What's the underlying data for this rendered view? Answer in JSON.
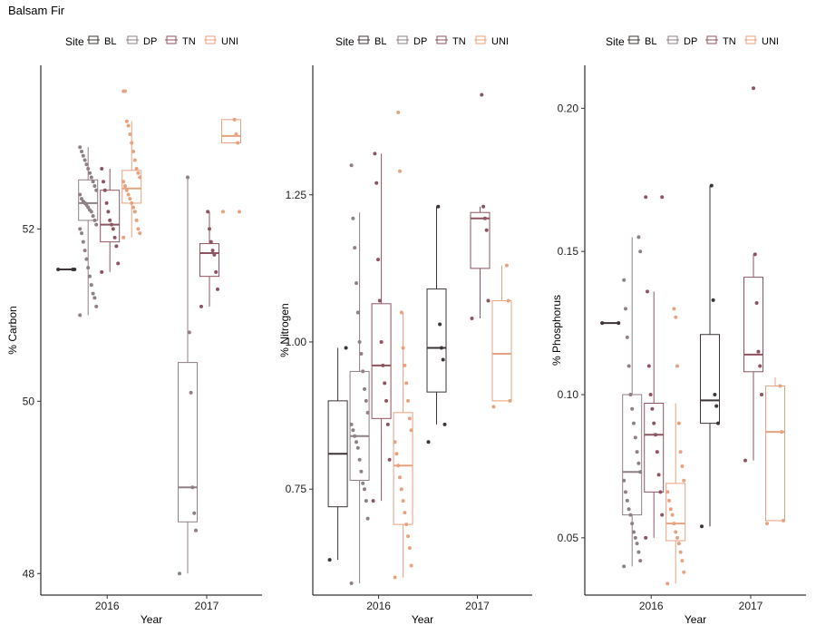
{
  "title": "Balsam Fir",
  "legend": {
    "title": "Site",
    "entries": [
      "BL",
      "DP",
      "TN",
      "UNI"
    ]
  },
  "colors": {
    "BL": "#3d3436",
    "DP": "#8f7f86",
    "TN": "#8e5560",
    "UNI": "#e7a27f",
    "axis": "#000000"
  },
  "chart_data": [
    {
      "type": "box",
      "xlabel": "Year",
      "ylabel": "% Carbon",
      "categories": [
        "2016",
        "2017"
      ],
      "yticks": [
        48,
        50,
        52
      ],
      "ylim": [
        47.75,
        53.9
      ],
      "series": [
        {
          "name": "BL",
          "boxes": [
            {
              "year": "2016",
              "min": 51.53,
              "q1": 51.53,
              "median": 51.53,
              "q3": 51.53,
              "max": 51.53,
              "points": [
                51.53,
                51.53,
                51.53
              ]
            },
            null
          ]
        },
        {
          "name": "DP",
          "boxes": [
            {
              "year": "2016",
              "min": 51.0,
              "q1": 52.1,
              "median": 52.3,
              "q3": 52.57,
              "max": 52.95,
              "points": [
                51.0,
                51.1,
                51.2,
                51.25,
                51.35,
                51.45,
                51.55,
                51.65,
                51.75,
                51.85,
                51.95,
                52.0,
                52.05,
                52.1,
                52.15,
                52.2,
                52.22,
                52.25,
                52.28,
                52.3,
                52.32,
                52.35,
                52.4,
                52.45,
                52.5,
                52.55,
                52.6,
                52.65,
                52.7,
                52.75,
                52.8,
                52.85,
                52.9,
                52.95
              ]
            },
            {
              "year": "2017",
              "min": 48.0,
              "q1": 48.6,
              "median": 49.0,
              "q3": 50.45,
              "max": 52.6,
              "points": [
                48.0,
                48.5,
                48.7,
                49.0,
                50.1,
                50.8,
                52.6
              ]
            }
          ]
        },
        {
          "name": "TN",
          "boxes": [
            {
              "year": "2016",
              "min": 51.5,
              "q1": 51.85,
              "median": 52.05,
              "q3": 52.45,
              "max": 52.7,
              "points": [
                51.5,
                51.6,
                51.8,
                51.9,
                52.0,
                52.05,
                52.1,
                52.2,
                52.3,
                52.45,
                52.55,
                52.7
              ]
            },
            {
              "year": "2017",
              "min": 51.1,
              "q1": 51.45,
              "median": 51.72,
              "q3": 51.83,
              "max": 52.2,
              "points": [
                51.1,
                51.3,
                51.5,
                51.7,
                51.75,
                51.85,
                52.0,
                52.2
              ]
            }
          ]
        },
        {
          "name": "UNI",
          "boxes": [
            {
              "year": "2016",
              "min": 51.9,
              "q1": 52.3,
              "median": 52.47,
              "q3": 52.68,
              "max": 53.25,
              "points": [
                51.9,
                51.95,
                52.0,
                52.1,
                52.2,
                52.25,
                52.3,
                52.35,
                52.4,
                52.45,
                52.5,
                52.55,
                52.6,
                52.65,
                52.7,
                52.8,
                52.9,
                53.0,
                53.1,
                53.2,
                53.25,
                53.6,
                53.6
              ]
            },
            {
              "year": "2017",
              "min": 53.0,
              "q1": 53.0,
              "median": 53.08,
              "q3": 53.27,
              "max": 53.27,
              "points": [
                52.2,
                52.2,
                53.0,
                53.1,
                53.27
              ]
            }
          ]
        }
      ]
    },
    {
      "type": "box",
      "xlabel": "Year",
      "ylabel": "% Nitrogen",
      "categories": [
        "2016",
        "2017"
      ],
      "yticks": [
        0.75,
        1.0,
        1.25
      ],
      "ytick_labels": [
        "0.75",
        "1.00",
        "1.25"
      ],
      "ylim": [
        0.57,
        1.47
      ],
      "series": [
        {
          "name": "BL",
          "boxes": [
            {
              "year": "2016",
              "min": 0.63,
              "q1": 0.72,
              "median": 0.81,
              "q3": 0.9,
              "max": 0.99,
              "points": [
                0.63,
                0.99
              ]
            },
            {
              "year": "2017",
              "min": 0.86,
              "q1": 0.915,
              "median": 0.99,
              "q3": 1.09,
              "max": 1.23,
              "points": [
                0.83,
                0.86,
                0.97,
                0.99,
                1.03,
                1.23
              ]
            }
          ]
        },
        {
          "name": "DP",
          "boxes": [
            {
              "year": "2016",
              "min": 0.59,
              "q1": 0.765,
              "median": 0.84,
              "q3": 0.95,
              "max": 1.22,
              "points": [
                0.59,
                0.7,
                0.73,
                0.75,
                0.76,
                0.78,
                0.8,
                0.82,
                0.83,
                0.84,
                0.85,
                0.86,
                0.88,
                0.9,
                0.92,
                0.95,
                0.98,
                1.0,
                1.05,
                1.1,
                1.16,
                1.21,
                1.3
              ]
            },
            null
          ]
        },
        {
          "name": "TN",
          "boxes": [
            {
              "year": "2016",
              "min": 0.73,
              "q1": 0.87,
              "median": 0.96,
              "q3": 1.065,
              "max": 1.32,
              "points": [
                0.73,
                0.8,
                0.86,
                0.9,
                0.93,
                0.96,
                1.0,
                1.07,
                1.14,
                1.27,
                1.32
              ]
            },
            {
              "year": "2017",
              "min": 1.04,
              "q1": 1.125,
              "median": 1.21,
              "q3": 1.22,
              "max": 1.23,
              "points": [
                1.04,
                1.07,
                1.19,
                1.21,
                1.23,
                1.42
              ]
            }
          ]
        },
        {
          "name": "UNI",
          "boxes": [
            {
              "year": "2016",
              "min": 0.6,
              "q1": 0.69,
              "median": 0.79,
              "q3": 0.88,
              "max": 1.05,
              "points": [
                0.6,
                0.62,
                0.65,
                0.67,
                0.69,
                0.71,
                0.73,
                0.75,
                0.77,
                0.79,
                0.81,
                0.83,
                0.85,
                0.87,
                0.9,
                0.93,
                0.96,
                0.99,
                1.05,
                1.29,
                1.39
              ]
            },
            {
              "year": "2017",
              "min": 0.9,
              "q1": 0.9,
              "median": 0.98,
              "q3": 1.07,
              "max": 1.13,
              "points": [
                0.89,
                0.9,
                1.07,
                1.13
              ]
            }
          ]
        }
      ]
    },
    {
      "type": "box",
      "xlabel": "Year",
      "ylabel": "% Phosphorus",
      "categories": [
        "2016",
        "2017"
      ],
      "yticks": [
        0.05,
        0.1,
        0.15,
        0.2
      ],
      "ytick_labels": [
        "0.05",
        "0.10",
        "0.15",
        "0.20"
      ],
      "ylim": [
        0.03,
        0.215
      ],
      "series": [
        {
          "name": "BL",
          "boxes": [
            {
              "year": "2016",
              "min": 0.125,
              "q1": 0.125,
              "median": 0.125,
              "q3": 0.125,
              "max": 0.125,
              "points": [
                0.125,
                0.125
              ]
            },
            {
              "year": "2017",
              "min": 0.054,
              "q1": 0.09,
              "median": 0.098,
              "q3": 0.121,
              "max": 0.173,
              "points": [
                0.054,
                0.09,
                0.096,
                0.1,
                0.133,
                0.173
              ]
            }
          ]
        },
        {
          "name": "DP",
          "boxes": [
            {
              "year": "2016",
              "min": 0.04,
              "q1": 0.058,
              "median": 0.073,
              "q3": 0.1,
              "max": 0.155,
              "points": [
                0.04,
                0.042,
                0.045,
                0.048,
                0.05,
                0.052,
                0.055,
                0.058,
                0.06,
                0.063,
                0.066,
                0.07,
                0.073,
                0.076,
                0.08,
                0.085,
                0.09,
                0.095,
                0.1,
                0.11,
                0.12,
                0.13,
                0.14,
                0.15,
                0.155
              ]
            },
            null
          ]
        },
        {
          "name": "TN",
          "boxes": [
            {
              "year": "2016",
              "min": 0.05,
              "q1": 0.066,
              "median": 0.086,
              "q3": 0.097,
              "max": 0.136,
              "points": [
                0.05,
                0.058,
                0.066,
                0.072,
                0.08,
                0.086,
                0.09,
                0.095,
                0.1,
                0.11,
                0.136,
                0.169,
                0.169
              ]
            },
            {
              "year": "2017",
              "min": 0.077,
              "q1": 0.108,
              "median": 0.114,
              "q3": 0.141,
              "max": 0.149,
              "points": [
                0.077,
                0.1,
                0.11,
                0.115,
                0.132,
                0.149,
                0.207
              ]
            }
          ]
        },
        {
          "name": "UNI",
          "boxes": [
            {
              "year": "2016",
              "min": 0.034,
              "q1": 0.049,
              "median": 0.055,
              "q3": 0.069,
              "max": 0.097,
              "points": [
                0.034,
                0.038,
                0.042,
                0.045,
                0.048,
                0.05,
                0.052,
                0.055,
                0.058,
                0.06,
                0.063,
                0.066,
                0.07,
                0.075,
                0.08,
                0.09,
                0.11,
                0.127,
                0.13
              ]
            },
            {
              "year": "2017",
              "min": 0.056,
              "q1": 0.056,
              "median": 0.087,
              "q3": 0.103,
              "max": 0.106,
              "points": [
                0.055,
                0.056,
                0.087,
                0.103
              ]
            }
          ]
        }
      ]
    }
  ]
}
